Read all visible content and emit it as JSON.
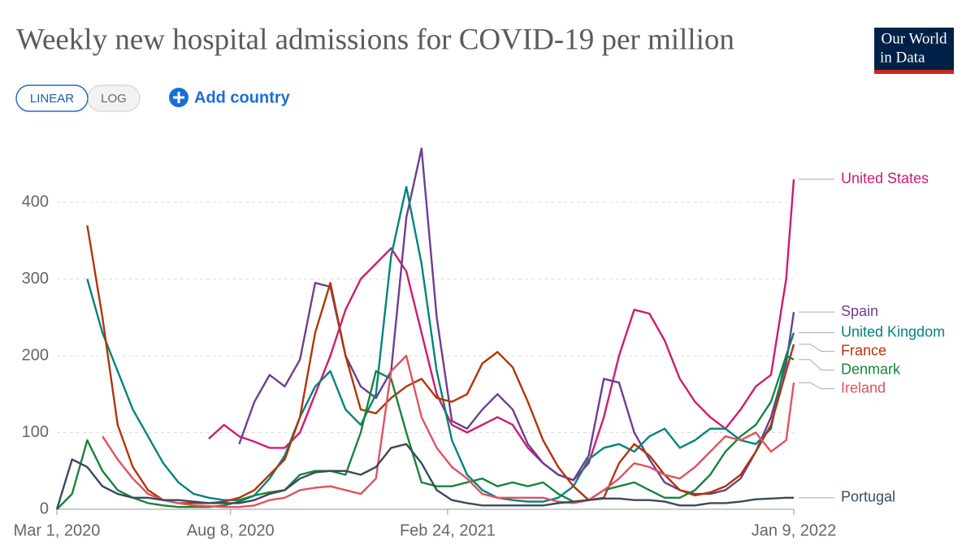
{
  "logo": {
    "line1": "Our World",
    "line2": "in Data"
  },
  "controls": {
    "linear": "LINEAR",
    "log": "LOG",
    "add_country": "Add country"
  },
  "chart_data": {
    "type": "line",
    "title": "Weekly new hospital admissions for COVID-19 per million",
    "x": [
      "2020-03-01",
      "2020-03-15",
      "2020-03-29",
      "2020-04-12",
      "2020-04-26",
      "2020-05-10",
      "2020-05-24",
      "2020-06-07",
      "2020-06-21",
      "2020-07-05",
      "2020-07-19",
      "2020-08-02",
      "2020-08-16",
      "2020-08-30",
      "2020-09-13",
      "2020-09-27",
      "2020-10-11",
      "2020-10-25",
      "2020-11-08",
      "2020-11-22",
      "2020-12-06",
      "2020-12-20",
      "2021-01-03",
      "2021-01-17",
      "2021-01-31",
      "2021-02-14",
      "2021-02-28",
      "2021-03-14",
      "2021-03-28",
      "2021-04-11",
      "2021-04-25",
      "2021-05-09",
      "2021-05-23",
      "2021-06-06",
      "2021-06-20",
      "2021-07-04",
      "2021-07-18",
      "2021-08-01",
      "2021-08-15",
      "2021-08-29",
      "2021-09-12",
      "2021-09-26",
      "2021-10-10",
      "2021-10-24",
      "2021-11-07",
      "2021-11-21",
      "2021-12-05",
      "2021-12-19",
      "2022-01-02",
      "2022-01-09"
    ],
    "xlim": [
      "2020-03-01",
      "2022-01-09"
    ],
    "xticks": [
      {
        "value": "2020-03-01",
        "label": "Mar 1, 2020"
      },
      {
        "value": "2020-08-08",
        "label": "Aug 8, 2020"
      },
      {
        "value": "2021-02-24",
        "label": "Feb 24, 2021"
      },
      {
        "value": "2022-01-09",
        "label": "Jan 9, 2022"
      }
    ],
    "ylim": [
      0,
      490
    ],
    "yticks": [
      0,
      100,
      200,
      300,
      400
    ],
    "grid": true,
    "series": [
      {
        "name": "United States",
        "color": "#cf1b72",
        "values": [
          null,
          null,
          null,
          null,
          null,
          null,
          null,
          null,
          null,
          null,
          92,
          110,
          95,
          88,
          80,
          80,
          100,
          150,
          200,
          260,
          300,
          320,
          340,
          310,
          230,
          150,
          110,
          100,
          110,
          120,
          110,
          80,
          60,
          45,
          38,
          60,
          120,
          200,
          260,
          255,
          220,
          170,
          140,
          120,
          105,
          130,
          160,
          175,
          300,
          430
        ]
      },
      {
        "name": "Spain",
        "color": "#6d3e91",
        "values": [
          null,
          null,
          null,
          null,
          null,
          null,
          null,
          null,
          null,
          null,
          null,
          null,
          85,
          140,
          175,
          160,
          195,
          295,
          290,
          200,
          160,
          145,
          180,
          380,
          470,
          250,
          115,
          105,
          130,
          150,
          130,
          85,
          60,
          45,
          38,
          70,
          170,
          165,
          100,
          65,
          35,
          25,
          20,
          20,
          25,
          40,
          75,
          120,
          190,
          257
        ]
      },
      {
        "name": "United Kingdom",
        "color": "#00847e",
        "values": [
          null,
          null,
          300,
          230,
          180,
          130,
          95,
          60,
          35,
          20,
          15,
          12,
          12,
          18,
          40,
          70,
          120,
          160,
          180,
          130,
          110,
          150,
          330,
          420,
          320,
          180,
          90,
          45,
          25,
          15,
          12,
          10,
          10,
          15,
          30,
          65,
          80,
          85,
          75,
          95,
          105,
          80,
          90,
          105,
          105,
          90,
          85,
          105,
          200,
          230
        ]
      },
      {
        "name": "France",
        "color": "#b13507",
        "values": [
          null,
          null,
          370,
          250,
          110,
          55,
          25,
          12,
          8,
          8,
          8,
          10,
          15,
          25,
          45,
          65,
          120,
          230,
          295,
          200,
          130,
          125,
          145,
          160,
          170,
          145,
          140,
          150,
          190,
          205,
          185,
          140,
          90,
          55,
          30,
          12,
          15,
          60,
          85,
          70,
          45,
          25,
          18,
          22,
          30,
          45,
          75,
          110,
          180,
          215
        ]
      },
      {
        "name": "Denmark",
        "color": "#18843a",
        "values": [
          0,
          20,
          90,
          50,
          25,
          15,
          8,
          5,
          3,
          3,
          3,
          5,
          10,
          18,
          22,
          25,
          45,
          50,
          50,
          45,
          100,
          180,
          170,
          100,
          35,
          30,
          30,
          35,
          40,
          30,
          35,
          30,
          35,
          20,
          10,
          12,
          25,
          30,
          35,
          25,
          15,
          15,
          25,
          45,
          75,
          95,
          110,
          140,
          200,
          195
        ]
      },
      {
        "name": "Ireland",
        "color": "#e0525f",
        "values": [
          null,
          null,
          null,
          95,
          65,
          40,
          20,
          12,
          8,
          5,
          4,
          3,
          3,
          5,
          12,
          15,
          25,
          28,
          30,
          25,
          20,
          40,
          180,
          200,
          120,
          80,
          55,
          40,
          20,
          15,
          15,
          15,
          15,
          10,
          8,
          12,
          25,
          40,
          60,
          55,
          45,
          40,
          55,
          75,
          95,
          90,
          100,
          75,
          90,
          165
        ]
      },
      {
        "name": "Portugal",
        "color": "#3b4a5e",
        "values": [
          0,
          65,
          55,
          30,
          20,
          15,
          15,
          12,
          12,
          10,
          8,
          8,
          8,
          12,
          20,
          25,
          40,
          48,
          50,
          50,
          45,
          55,
          80,
          85,
          60,
          25,
          12,
          8,
          5,
          5,
          5,
          5,
          5,
          8,
          10,
          12,
          14,
          14,
          12,
          12,
          10,
          5,
          5,
          8,
          8,
          10,
          13,
          14,
          15,
          15
        ]
      }
    ]
  }
}
